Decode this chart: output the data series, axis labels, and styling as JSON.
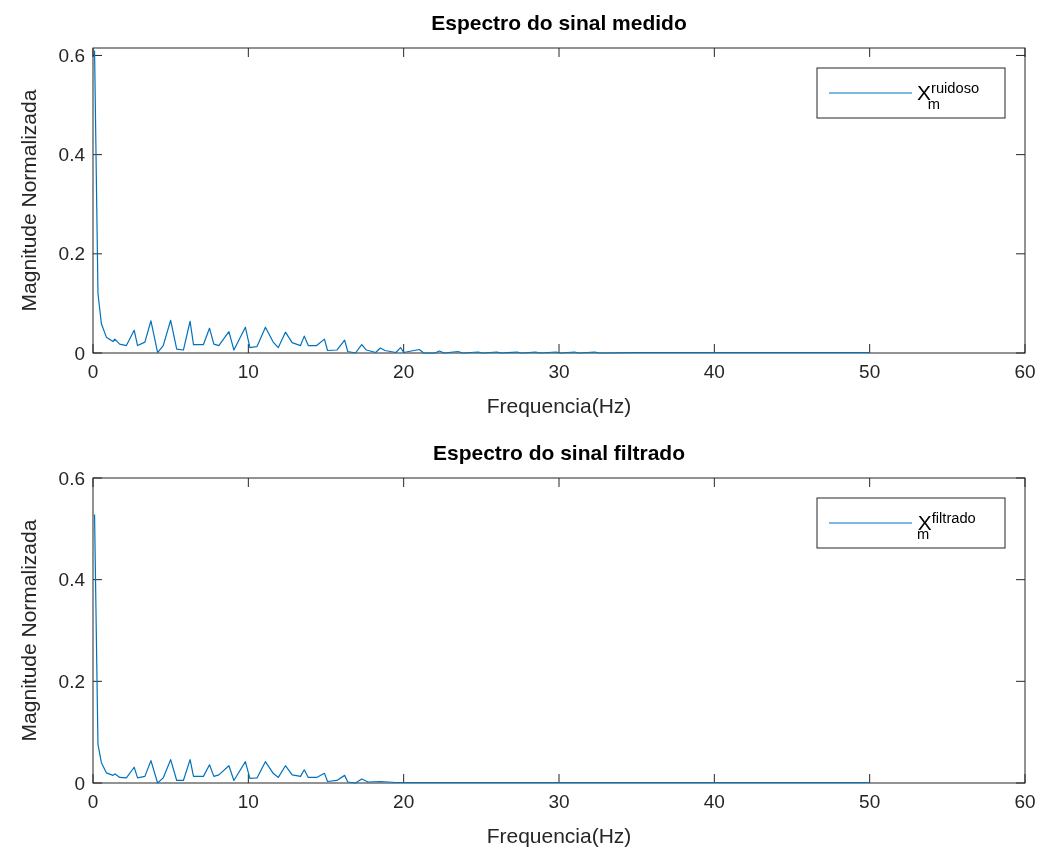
{
  "chart_data": [
    {
      "type": "line",
      "title": "Espectro do sinal medido",
      "xlabel": "Frequencia(Hz)",
      "ylabel": "Magnitude Normalizada",
      "xlim": [
        0,
        60
      ],
      "xticks": [
        0,
        10,
        20,
        30,
        40,
        50,
        60
      ],
      "ylim": [
        0,
        0.615
      ],
      "yticks": [
        0,
        0.2,
        0.4,
        0.6
      ],
      "grid": false,
      "legend": "top right",
      "line_style": "solid",
      "marker": "none",
      "series": [
        {
          "name": "X$^{ruidoso}$$_{m}$",
          "color": "#0072bd",
          "x": [
            0.1,
            0.32,
            0.54,
            0.86,
            1.29,
            1.4,
            1.72,
            2.15,
            2.65,
            2.87,
            3.34,
            3.73,
            4.16,
            4.52,
            5.0,
            5.39,
            5.82,
            6.25,
            6.47,
            7.11,
            7.5,
            7.78,
            8.1,
            8.75,
            9.07,
            9.81,
            10.1,
            10.56,
            11.1,
            11.6,
            11.93,
            12.39,
            12.82,
            13.36,
            13.6,
            13.86,
            14.4,
            14.9,
            15.1,
            15.7,
            16.2,
            16.4,
            16.9,
            17.3,
            17.6,
            18.2,
            18.5,
            18.8,
            19.5,
            19.8,
            20.0,
            21.0,
            21.3,
            22.0,
            22.3,
            22.6,
            23.5,
            23.8,
            24.8,
            25.1,
            26.0,
            26.3,
            27.3,
            27.6,
            28.5,
            28.8,
            29.8,
            30.1,
            31.0,
            31.3,
            32.3,
            32.6,
            35,
            40,
            45,
            50
          ],
          "values": [
            0.61,
            0.12,
            0.059,
            0.032,
            0.023,
            0.028,
            0.018,
            0.015,
            0.046,
            0.015,
            0.022,
            0.065,
            0.001,
            0.015,
            0.066,
            0.008,
            0.006,
            0.064,
            0.017,
            0.017,
            0.05,
            0.018,
            0.015,
            0.043,
            0.006,
            0.052,
            0.011,
            0.013,
            0.052,
            0.022,
            0.011,
            0.042,
            0.021,
            0.015,
            0.034,
            0.015,
            0.015,
            0.028,
            0.005,
            0.006,
            0.026,
            0.003,
            0,
            0.017,
            0.006,
            0.001,
            0.01,
            0.005,
            0.001,
            0.011,
            0.001,
            0.007,
            0,
            0,
            0.004,
            0,
            0.003,
            0,
            0.002,
            0,
            0.002,
            0,
            0.002,
            0,
            0.002,
            0,
            0.002,
            0,
            0.002,
            0,
            0.002,
            0,
            0.001,
            0.001,
            0.001,
            0.001
          ]
        }
      ]
    },
    {
      "type": "line",
      "title": "Espectro do sinal filtrado",
      "xlabel": "Frequencia(Hz)",
      "ylabel": "Magnitude Normalizada",
      "xlim": [
        0,
        60
      ],
      "xticks": [
        0,
        10,
        20,
        30,
        40,
        50,
        60
      ],
      "ylim": [
        0,
        0.6
      ],
      "yticks": [
        0,
        0.2,
        0.4,
        0.6
      ],
      "grid": false,
      "legend": "top right",
      "line_style": "solid",
      "marker": "none",
      "series": [
        {
          "name": "X$^{filtrado}$$_{m}$",
          "color": "#0072bd",
          "x": [
            0.1,
            0.32,
            0.54,
            0.86,
            1.29,
            1.4,
            1.72,
            2.15,
            2.65,
            2.87,
            3.34,
            3.73,
            4.16,
            4.52,
            5.0,
            5.39,
            5.82,
            6.25,
            6.47,
            7.11,
            7.5,
            7.78,
            8.1,
            8.75,
            9.07,
            9.81,
            10.1,
            10.56,
            11.1,
            11.6,
            11.93,
            12.39,
            12.82,
            13.36,
            13.6,
            13.86,
            14.4,
            14.9,
            15.1,
            15.7,
            16.2,
            16.4,
            16.9,
            17.3,
            17.7,
            18.5,
            19.5,
            20,
            30,
            40,
            50
          ],
          "values": [
            0.528,
            0.076,
            0.04,
            0.02,
            0.015,
            0.018,
            0.011,
            0.01,
            0.031,
            0.01,
            0.013,
            0.044,
            0,
            0.01,
            0.046,
            0.005,
            0.005,
            0.046,
            0.013,
            0.013,
            0.036,
            0.013,
            0.016,
            0.034,
            0.005,
            0.042,
            0.009,
            0.01,
            0.042,
            0.019,
            0.011,
            0.034,
            0.016,
            0.013,
            0.026,
            0.011,
            0.011,
            0.019,
            0.003,
            0.005,
            0.015,
            0.002,
            0,
            0.008,
            0.002,
            0.003,
            0.001,
            0.001,
            0.001,
            0.001,
            0.001
          ]
        }
      ]
    }
  ]
}
